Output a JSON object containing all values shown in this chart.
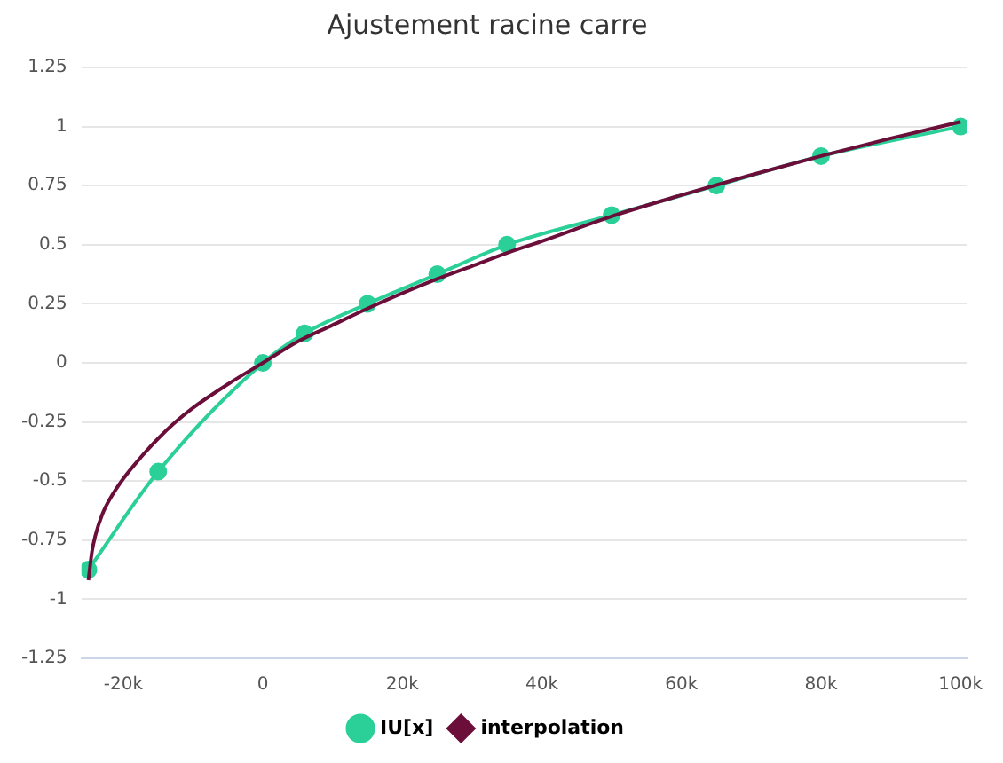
{
  "chart_data": {
    "type": "line",
    "title": "Ajustement racine carre",
    "xlim": [
      -26000,
      101000
    ],
    "xticks": [
      {
        "value": -20000,
        "label": "-20k"
      },
      0,
      {
        "value": 20000,
        "label": "20k"
      },
      {
        "value": 40000,
        "label": "40k"
      },
      {
        "value": 60000,
        "label": "60k"
      },
      {
        "value": 80000,
        "label": "80k"
      },
      {
        "value": 100000,
        "label": "100k"
      }
    ],
    "ylim": [
      -1.25,
      1.25
    ],
    "yticks": [
      -1.25,
      -1,
      -0.75,
      -0.5,
      -0.25,
      0,
      0.25,
      0.5,
      0.75,
      1,
      1.25
    ],
    "grid": "y",
    "legend": "bottom",
    "series": [
      {
        "name": "IU[x]",
        "color": "#2bcf98",
        "marker": "circle",
        "x": [
          -25000,
          -15000,
          0,
          6000,
          15000,
          25000,
          35000,
          50000,
          65000,
          80000,
          100000
        ],
        "values": [
          -0.875,
          -0.46,
          0,
          0.125,
          0.25,
          0.375,
          0.5,
          0.625,
          0.75,
          0.875,
          1
        ]
      },
      {
        "name": "interpolation",
        "color": "#6b0f3a",
        "marker": "none",
        "x": [
          -25000,
          -24500,
          -24000,
          -23000,
          -22000,
          -20000,
          -17500,
          -15000,
          -12500,
          -10000,
          -5000,
          0,
          5000,
          10000,
          15000,
          20000,
          25000,
          30000,
          35000,
          40000,
          50000,
          60000,
          70000,
          80000,
          90000,
          100000
        ],
        "values": [
          -0.92,
          -0.8,
          -0.73,
          -0.64,
          -0.58,
          -0.49,
          -0.4,
          -0.32,
          -0.25,
          -0.19,
          -0.09,
          0,
          0.09,
          0.16,
          0.23,
          0.295,
          0.355,
          0.41,
          0.465,
          0.515,
          0.62,
          0.71,
          0.795,
          0.875,
          0.95,
          1.02
        ]
      }
    ]
  }
}
